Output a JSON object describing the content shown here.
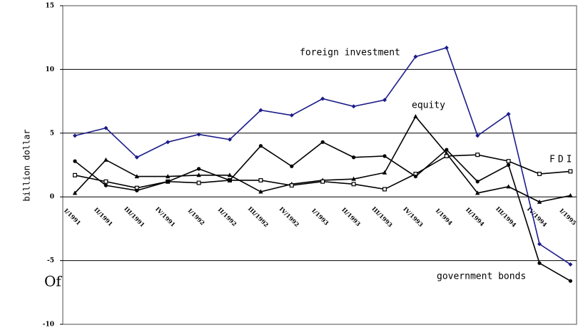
{
  "chart_data": {
    "type": "line",
    "y_label": "billion dollar",
    "side_text": "Of",
    "categories": [
      "I/1991",
      "II/1991",
      "III/1991",
      "IV/1991",
      "I/1992",
      "II/1992",
      "III/1992",
      "IV/1992",
      "I/1993",
      "II/1993",
      "III/1993",
      "IV/1993",
      "I/1994",
      "II/1994",
      "III/1994",
      "IV/1994",
      "I/1995"
    ],
    "series": [
      {
        "name": "foreign investment",
        "color": "#1c1c8a",
        "marker": "diamond",
        "values": [
          4.8,
          5.4,
          3.1,
          4.3,
          4.9,
          4.5,
          6.8,
          6.4,
          7.7,
          7.1,
          7.6,
          11.0,
          11.7,
          4.8,
          6.5,
          -3.7,
          -5.3
        ]
      },
      {
        "name": "equity",
        "color": "#000000",
        "marker": "triangle",
        "values": [
          0.3,
          2.9,
          1.6,
          1.6,
          1.7,
          1.7,
          0.4,
          1.0,
          1.3,
          1.4,
          1.9,
          6.3,
          3.4,
          0.3,
          0.8,
          -0.4,
          0.1
        ]
      },
      {
        "name": "FDI",
        "color": "#000000",
        "marker": "square",
        "values": [
          1.7,
          1.2,
          0.7,
          1.2,
          1.1,
          1.3,
          1.3,
          0.9,
          1.2,
          1.0,
          0.6,
          1.8,
          3.2,
          3.3,
          2.8,
          1.8,
          2.0
        ]
      },
      {
        "name": "government bonds",
        "color": "#000000",
        "marker": "circle",
        "values": [
          2.8,
          0.9,
          0.5,
          1.2,
          2.2,
          1.3,
          4.0,
          2.4,
          4.3,
          3.1,
          3.2,
          1.6,
          3.7,
          1.2,
          2.5,
          -5.2,
          -6.6
        ]
      }
    ],
    "ylim": [
      -10,
      15
    ],
    "yticks": [
      -10,
      -5,
      0,
      5,
      10,
      15
    ],
    "grid": true
  }
}
